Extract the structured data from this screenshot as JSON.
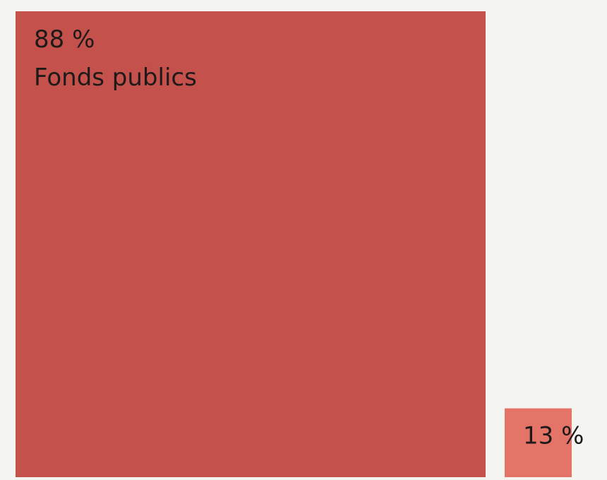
{
  "chart_data": {
    "type": "bar",
    "categories": [
      "Fonds publics",
      ""
    ],
    "values": [
      88,
      13
    ],
    "data_labels": [
      "88 %",
      "13 %"
    ],
    "title": "",
    "xlabel": "",
    "ylabel": "",
    "ylim": [
      0,
      100
    ],
    "grid": false,
    "legend": "none",
    "colors": [
      "#c4514b",
      "#e47468"
    ],
    "background": "#f4f4f1"
  }
}
